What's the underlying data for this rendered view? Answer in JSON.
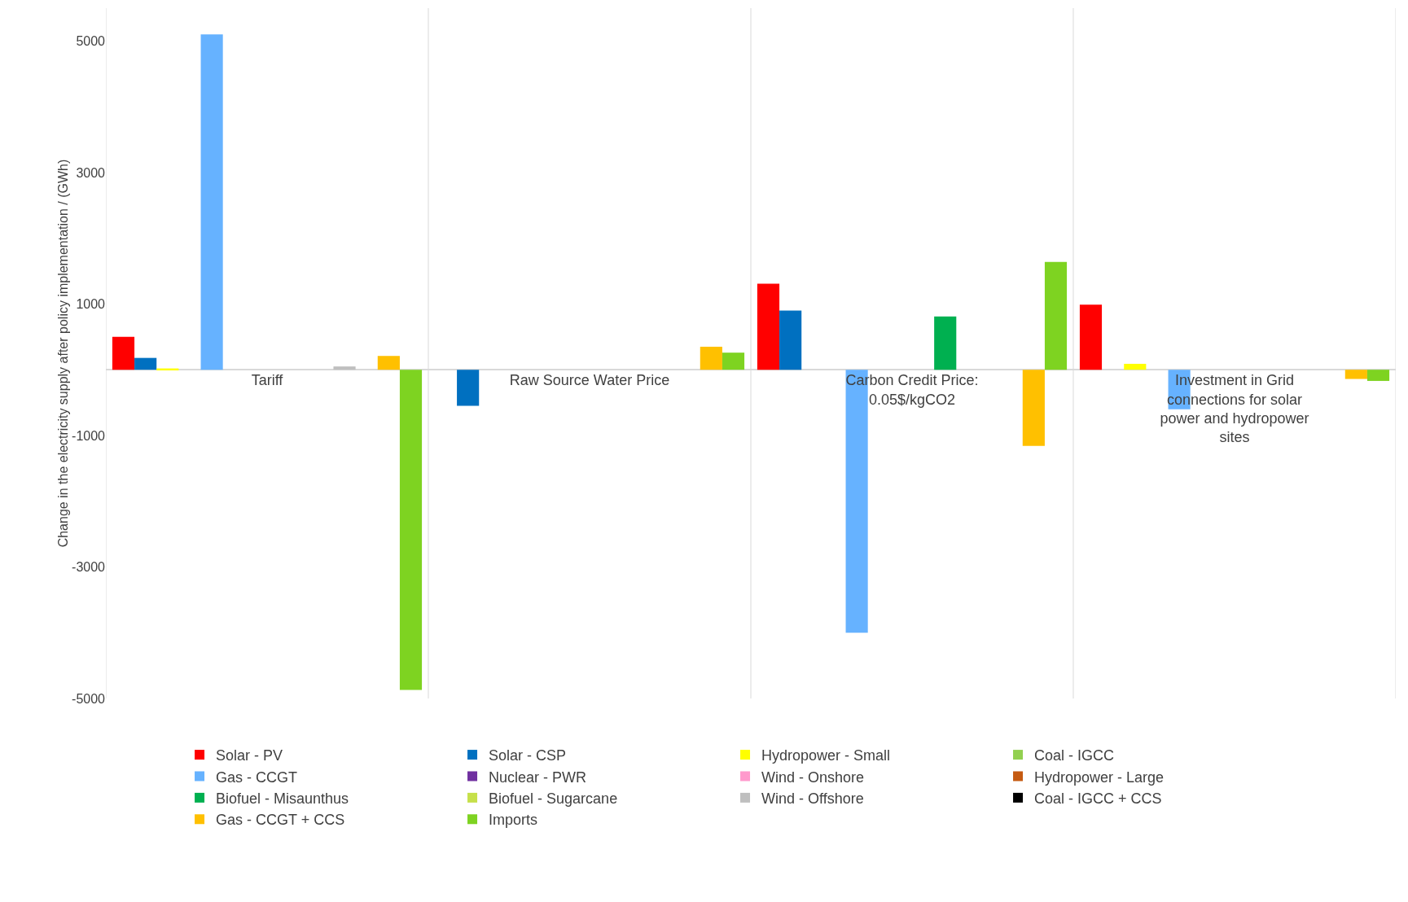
{
  "chart_data": {
    "type": "bar",
    "ylabel": "Change in the electricity supply after policy implementation / (GWh)",
    "categories": [
      "Tariff",
      "Raw Source Water Price",
      "Carbon Credit Price: 0.05$/kgCO2",
      "Investment in Grid connections for solar power and hydropower sites"
    ],
    "series": [
      {
        "name": "Solar - PV",
        "color": "#ff0000",
        "values": [
          500,
          0,
          1310,
          990
        ]
      },
      {
        "name": "Solar - CSP",
        "color": "#0070c0",
        "values": [
          180,
          -550,
          900,
          0
        ]
      },
      {
        "name": "Hydropower - Small",
        "color": "#ffff00",
        "values": [
          20,
          0,
          0,
          90
        ]
      },
      {
        "name": "Coal - IGCC",
        "color": "#92d050",
        "values": [
          0,
          0,
          0,
          0
        ]
      },
      {
        "name": "Gas - CCGT",
        "color": "#66b2ff",
        "values": [
          5100,
          0,
          -4000,
          -600
        ]
      },
      {
        "name": "Nuclear - PWR",
        "color": "#7030a0",
        "values": [
          0,
          0,
          0,
          0
        ]
      },
      {
        "name": "Wind - Onshore",
        "color": "#ff99cc",
        "values": [
          0,
          0,
          0,
          0
        ]
      },
      {
        "name": "Hydropower - Large",
        "color": "#c55a11",
        "values": [
          0,
          0,
          0,
          0
        ]
      },
      {
        "name": "Biofuel - Misaunthus",
        "color": "#00b050",
        "values": [
          0,
          0,
          810,
          0
        ]
      },
      {
        "name": "Biofuel - Sugarcane",
        "color": "#c6e04a",
        "values": [
          0,
          0,
          0,
          0
        ]
      },
      {
        "name": "Wind - Offshore",
        "color": "#bfbfbf",
        "values": [
          50,
          0,
          null,
          0
        ]
      },
      {
        "name": "Coal - IGCC + CCS",
        "color": "#000000",
        "values": [
          0,
          0,
          0,
          0
        ]
      },
      {
        "name": "Gas - CCGT + CCS",
        "color": "#ffc000",
        "values": [
          210,
          350,
          -1160,
          -140
        ]
      },
      {
        "name": "Imports",
        "color": "#7ed321",
        "values": [
          -4870,
          260,
          1640,
          -170
        ]
      }
    ],
    "ylim": [
      -5000,
      5500
    ],
    "yticks": [
      -5000,
      -3000,
      -1000,
      1000,
      3000,
      5000
    ],
    "grid": "x",
    "legend": "bottom"
  }
}
